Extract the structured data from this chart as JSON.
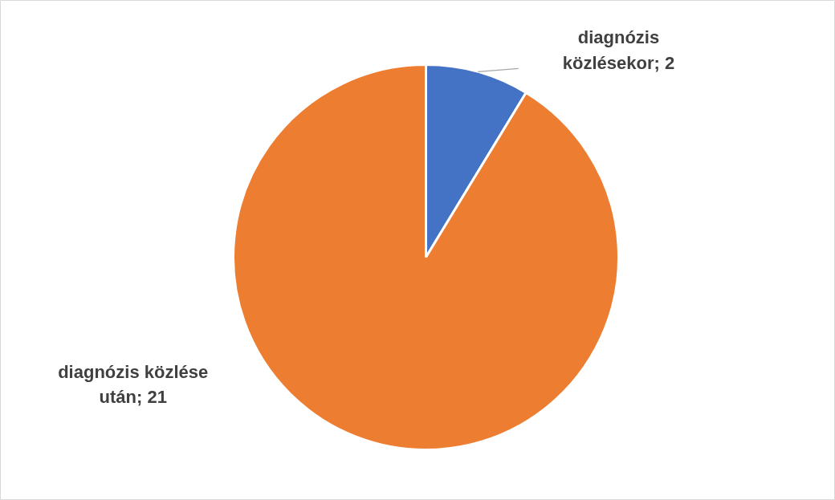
{
  "chart_data": {
    "type": "pie",
    "categories": [
      "diagnózis közlésekor; 2",
      "diagnózis közlése után; 21"
    ],
    "values": [
      2,
      21
    ],
    "colors": [
      "#4472c4",
      "#ed7d31"
    ]
  }
}
